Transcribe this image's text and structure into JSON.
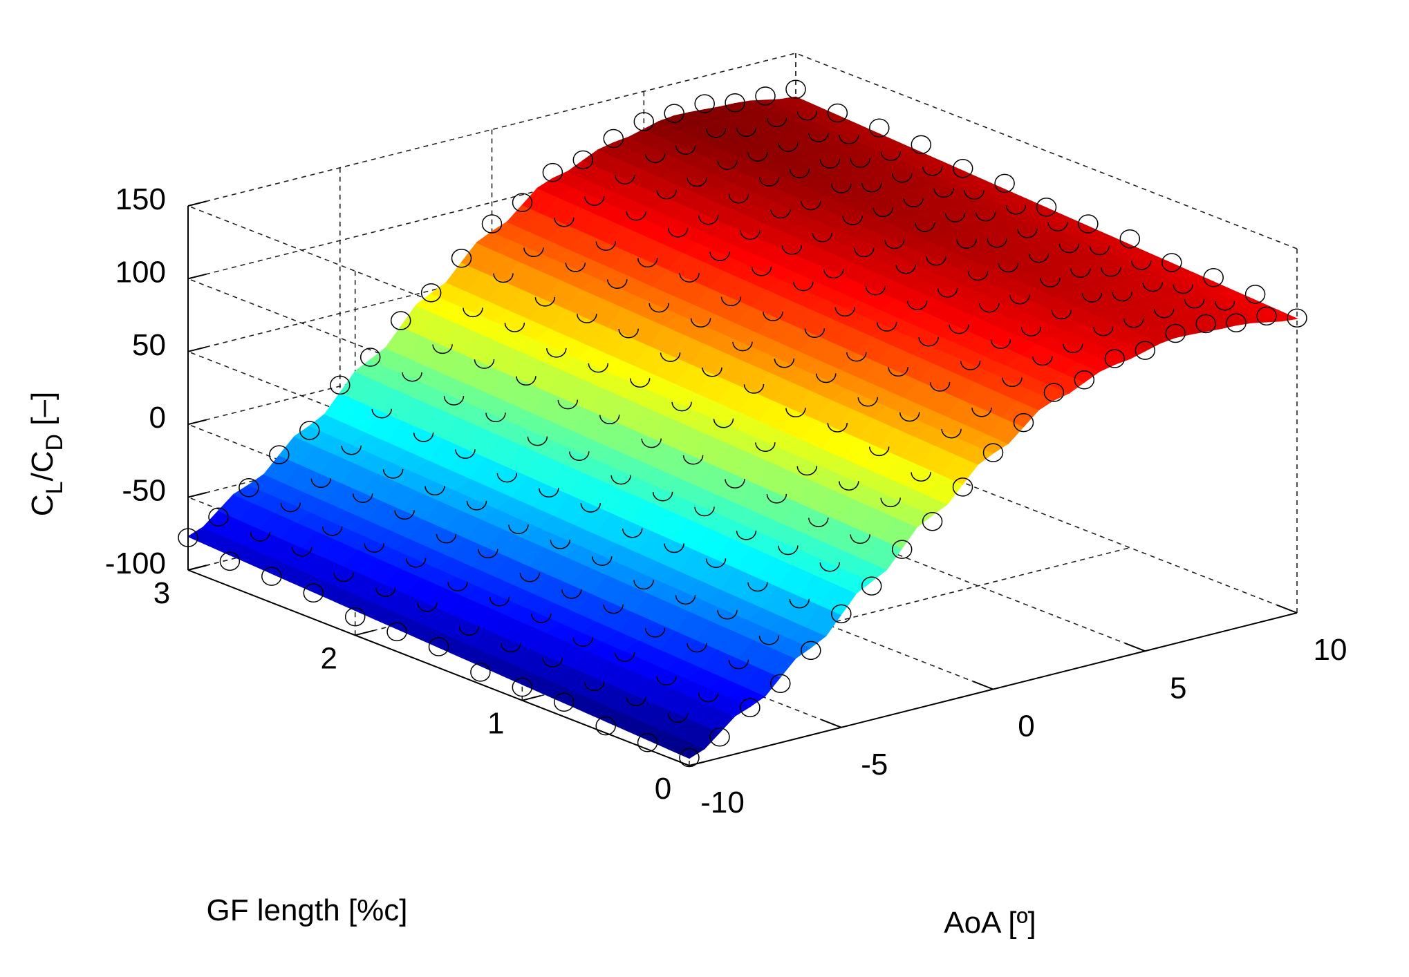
{
  "chart_data": {
    "type": "surface",
    "xlabel": "AoA [º]",
    "ylabel": "GF length [%c]",
    "zlabel": {
      "main_1": "C",
      "sub_1": "L",
      "main_2": "/C",
      "sub_2": "D",
      "tail": " [–]"
    },
    "xlim": [
      -10,
      10
    ],
    "ylim": [
      0,
      3
    ],
    "zlim": [
      -100,
      150
    ],
    "xticks": [
      -10,
      -5,
      0,
      5,
      10
    ],
    "yticks": [
      0,
      1,
      2,
      3
    ],
    "zticks": [
      -100,
      -50,
      0,
      50,
      100,
      150
    ],
    "xtick_labels": [
      "-10",
      "-5",
      "0",
      "5",
      "10"
    ],
    "ytick_labels": [
      "0",
      "1",
      "2",
      "3"
    ],
    "ztick_labels": [
      "-100",
      "-50",
      "0",
      "50",
      "100",
      "150"
    ],
    "grid": true,
    "colormap": "jet",
    "surface_description": "fitted surface of CL/CD over AoA and GF length",
    "aoa_values": [
      -10,
      -8,
      -6,
      -4,
      -2,
      0,
      2,
      4,
      6,
      8,
      10
    ],
    "gf_length_values": [
      0,
      0.5,
      1,
      1.5,
      2,
      2.5,
      3
    ],
    "cl_cd_by_aoa": [
      -95,
      -70,
      -40,
      -5,
      30,
      62,
      88,
      102,
      110,
      108,
      102
    ],
    "gf_effect_per_percent_chord": 6,
    "series": [
      {
        "name": "",
        "style": "surface"
      },
      {
        "name": "",
        "style": "open circle markers"
      }
    ]
  }
}
